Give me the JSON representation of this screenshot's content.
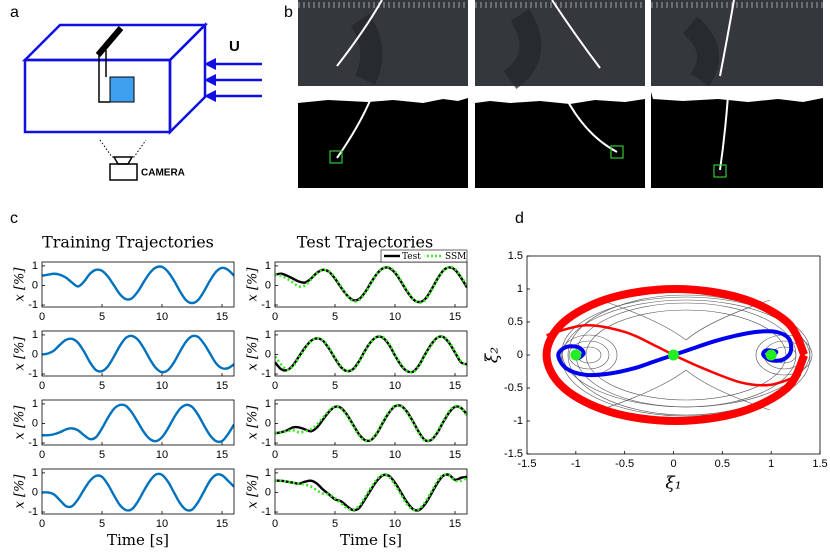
{
  "panel_labels": [
    "a",
    "b",
    "c",
    "d"
  ],
  "diagram": {
    "flow_label": "U",
    "camera_label": "CAMERA"
  },
  "column_titles": [
    "Training Trajectories",
    "Test Trajectories"
  ],
  "chart_data": [
    {
      "type": "line",
      "x": [
        0,
        0.5,
        1,
        1.5,
        2,
        2.5,
        3,
        3.5,
        4,
        4.5,
        5,
        5.5,
        6,
        6.5,
        7,
        7.5,
        8,
        8.5,
        9,
        9.5,
        10,
        10.5,
        11,
        11.5,
        12,
        12.5,
        13,
        13.5,
        14,
        14.5,
        15,
        15.5,
        16
      ],
      "series": [
        {
          "color": "#0072bd",
          "values": [
            0.5,
            0.55,
            0.6,
            0.55,
            0.4,
            0.15,
            -0.05,
            0.2,
            0.6,
            0.8,
            0.75,
            0.45,
            0,
            -0.45,
            -0.7,
            -0.65,
            -0.3,
            0.2,
            0.65,
            0.92,
            0.95,
            0.7,
            0.25,
            -0.3,
            -0.75,
            -0.9,
            -0.75,
            -0.3,
            0.25,
            0.7,
            0.9,
            0.8,
            0.5
          ]
        }
      ],
      "xlim": [
        0,
        16
      ],
      "ylim": [
        -1.1,
        1.2
      ],
      "xticks": [
        0,
        5,
        10,
        15
      ],
      "yticks": [
        -1,
        0,
        1
      ],
      "y_label": "x [%]"
    },
    {
      "type": "line",
      "x": [
        0,
        0.5,
        1,
        1.5,
        2,
        2.5,
        3,
        3.5,
        4,
        4.5,
        5,
        5.5,
        6,
        6.5,
        7,
        7.5,
        8,
        8.5,
        9,
        9.5,
        10,
        10.5,
        11,
        11.5,
        12,
        12.5,
        13,
        13.5,
        14,
        14.5,
        15,
        15.5,
        16
      ],
      "series": [
        {
          "name": "Test",
          "color": "#000000",
          "values": [
            0.55,
            0.6,
            0.5,
            0.35,
            0.2,
            0.15,
            0.35,
            0.65,
            0.8,
            0.7,
            0.35,
            -0.1,
            -0.5,
            -0.75,
            -0.7,
            -0.35,
            0.15,
            0.6,
            0.88,
            0.9,
            0.65,
            0.2,
            -0.3,
            -0.7,
            -0.85,
            -0.7,
            -0.25,
            0.3,
            0.75,
            0.92,
            0.8,
            0.4,
            -0.1
          ]
        },
        {
          "name": "SSM",
          "color": "#3ee62a",
          "line_style": "dotted",
          "values": [
            0.55,
            0.5,
            0.35,
            0.15,
            -0.05,
            0.0,
            0.3,
            0.62,
            0.78,
            0.72,
            0.4,
            -0.05,
            -0.5,
            -0.8,
            -0.75,
            -0.4,
            0.1,
            0.58,
            0.88,
            0.93,
            0.7,
            0.25,
            -0.25,
            -0.68,
            -0.88,
            -0.75,
            -0.3,
            0.25,
            0.72,
            0.93,
            0.85,
            0.45,
            0.0
          ]
        }
      ],
      "legend": "northeast",
      "xlim": [
        0,
        16
      ],
      "ylim": [
        -1.1,
        1.2
      ],
      "xticks": [
        0,
        5,
        10,
        15
      ],
      "yticks": [
        -1,
        0,
        1
      ],
      "y_label": "x [%]"
    },
    {
      "type": "line",
      "x": [
        0,
        0.5,
        1,
        1.5,
        2,
        2.5,
        3,
        3.5,
        4,
        4.5,
        5,
        5.5,
        6,
        6.5,
        7,
        7.5,
        8,
        8.5,
        9,
        9.5,
        10,
        10.5,
        11,
        11.5,
        12,
        12.5,
        13,
        13.5,
        14,
        14.5,
        15,
        15.5,
        16
      ],
      "series": [
        {
          "color": "#0072bd",
          "values": [
            0,
            0.05,
            0.2,
            0.5,
            0.75,
            0.8,
            0.6,
            0.15,
            -0.4,
            -0.8,
            -0.85,
            -0.6,
            -0.1,
            0.45,
            0.85,
            0.95,
            0.75,
            0.3,
            -0.25,
            -0.7,
            -0.9,
            -0.8,
            -0.4,
            0.15,
            0.65,
            0.93,
            0.9,
            0.55,
            0.05,
            -0.45,
            -0.7,
            -0.7,
            -0.5
          ]
        }
      ],
      "xlim": [
        0,
        16
      ],
      "ylim": [
        -1.1,
        1.2
      ],
      "xticks": [
        0,
        5,
        10,
        15
      ],
      "yticks": [
        -1,
        0,
        1
      ],
      "y_label": "x [%]"
    },
    {
      "type": "line",
      "x": [
        0,
        0.5,
        1,
        1.5,
        2,
        2.5,
        3,
        3.5,
        4,
        4.5,
        5,
        5.5,
        6,
        6.5,
        7,
        7.5,
        8,
        8.5,
        9,
        9.5,
        10,
        10.5,
        11,
        11.5,
        12,
        12.5,
        13,
        13.5,
        14,
        14.5,
        15,
        15.5,
        16
      ],
      "series": [
        {
          "color": "#000000",
          "values": [
            -0.4,
            -0.75,
            -0.8,
            -0.55,
            -0.1,
            0.35,
            0.7,
            0.82,
            0.7,
            0.3,
            -0.2,
            -0.65,
            -0.85,
            -0.75,
            -0.35,
            0.2,
            0.65,
            0.9,
            0.85,
            0.5,
            -0.05,
            -0.55,
            -0.85,
            -0.88,
            -0.55,
            0,
            0.5,
            0.85,
            0.9,
            0.6,
            0.1,
            -0.4,
            -0.5
          ]
        },
        {
          "color": "#3ee62a",
          "line_style": "dotted",
          "values": [
            -0.1,
            -0.5,
            -0.78,
            -0.6,
            -0.15,
            0.3,
            0.68,
            0.82,
            0.72,
            0.35,
            -0.15,
            -0.6,
            -0.85,
            -0.78,
            -0.4,
            0.15,
            0.62,
            0.9,
            0.88,
            0.55,
            0,
            -0.5,
            -0.83,
            -0.9,
            -0.6,
            -0.05,
            0.45,
            0.83,
            0.92,
            0.65,
            0.15,
            -0.35,
            -0.55
          ]
        }
      ],
      "xlim": [
        0,
        16
      ],
      "ylim": [
        -1.1,
        1.2
      ],
      "xticks": [
        0,
        5,
        10,
        15
      ],
      "yticks": [
        -1,
        0,
        1
      ],
      "y_label": "x [%]"
    },
    {
      "type": "line",
      "x": [
        0,
        0.5,
        1,
        1.5,
        2,
        2.5,
        3,
        3.5,
        4,
        4.5,
        5,
        5.5,
        6,
        6.5,
        7,
        7.5,
        8,
        8.5,
        9,
        9.5,
        10,
        10.5,
        11,
        11.5,
        12,
        12.5,
        13,
        13.5,
        14,
        14.5,
        15,
        15.5,
        16
      ],
      "series": [
        {
          "color": "#0072bd",
          "values": [
            -0.6,
            -0.6,
            -0.55,
            -0.45,
            -0.3,
            -0.25,
            -0.35,
            -0.6,
            -0.8,
            -0.7,
            -0.25,
            0.3,
            0.75,
            0.95,
            0.9,
            0.55,
            0.05,
            -0.45,
            -0.8,
            -0.9,
            -0.7,
            -0.25,
            0.3,
            0.75,
            0.95,
            0.85,
            0.45,
            -0.1,
            -0.6,
            -0.9,
            -0.9,
            -0.55,
            -0.05
          ]
        }
      ],
      "xlim": [
        0,
        16
      ],
      "ylim": [
        -1.1,
        1.2
      ],
      "xticks": [
        0,
        5,
        10,
        15
      ],
      "yticks": [
        -1,
        0,
        1
      ],
      "y_label": "x [%]"
    },
    {
      "type": "line",
      "x": [
        0,
        0.5,
        1,
        1.5,
        2,
        2.5,
        3,
        3.5,
        4,
        4.5,
        5,
        5.5,
        6,
        6.5,
        7,
        7.5,
        8,
        8.5,
        9,
        9.5,
        10,
        10.5,
        11,
        11.5,
        12,
        12.5,
        13,
        13.5,
        14,
        14.5,
        15,
        15.5,
        16
      ],
      "series": [
        {
          "color": "#000000",
          "values": [
            -0.5,
            -0.45,
            -0.35,
            -0.2,
            -0.2,
            -0.3,
            -0.4,
            -0.2,
            0.2,
            0.6,
            0.85,
            0.8,
            0.45,
            -0.05,
            -0.55,
            -0.85,
            -0.85,
            -0.5,
            0.05,
            0.55,
            0.88,
            0.9,
            0.6,
            0.1,
            -0.45,
            -0.85,
            -0.85,
            -0.5,
            0.05,
            0.55,
            0.85,
            0.8,
            0.45
          ]
        },
        {
          "color": "#3ee62a",
          "line_style": "dotted",
          "values": [
            -0.5,
            -0.45,
            -0.4,
            -0.35,
            -0.45,
            -0.4,
            -0.3,
            -0.05,
            0.3,
            0.65,
            0.85,
            0.75,
            0.4,
            -0.1,
            -0.6,
            -0.88,
            -0.82,
            -0.45,
            0.1,
            0.6,
            0.9,
            0.88,
            0.55,
            0.05,
            -0.5,
            -0.88,
            -0.82,
            -0.45,
            0.1,
            0.6,
            0.88,
            0.78,
            0.4
          ]
        }
      ],
      "xlim": [
        0,
        16
      ],
      "ylim": [
        -1.1,
        1.2
      ],
      "xticks": [
        0,
        5,
        10,
        15
      ],
      "yticks": [
        -1,
        0,
        1
      ],
      "y_label": "x [%]"
    },
    {
      "type": "line",
      "x": [
        0,
        0.5,
        1,
        1.5,
        2,
        2.5,
        3,
        3.5,
        4,
        4.5,
        5,
        5.5,
        6,
        6.5,
        7,
        7.5,
        8,
        8.5,
        9,
        9.5,
        10,
        10.5,
        11,
        11.5,
        12,
        12.5,
        13,
        13.5,
        14,
        14.5,
        15,
        15.5,
        16
      ],
      "series": [
        {
          "color": "#0072bd",
          "values": [
            0,
            0,
            -0.1,
            -0.4,
            -0.7,
            -0.7,
            -0.35,
            0.15,
            0.6,
            0.85,
            0.8,
            0.4,
            -0.15,
            -0.65,
            -0.9,
            -0.85,
            -0.45,
            0.1,
            0.6,
            0.92,
            0.9,
            0.55,
            0,
            -0.55,
            -0.88,
            -0.88,
            -0.5,
            0.05,
            0.6,
            0.9,
            0.88,
            0.6,
            0.3
          ]
        }
      ],
      "xlim": [
        0,
        16
      ],
      "ylim": [
        -1.1,
        1.2
      ],
      "xticks": [
        0,
        5,
        10,
        15
      ],
      "yticks": [
        -1,
        0,
        1
      ],
      "y_label": "x [%]",
      "x_label": "Time [s]"
    },
    {
      "type": "line",
      "x": [
        0,
        0.5,
        1,
        1.5,
        2,
        2.5,
        3,
        3.5,
        4,
        4.5,
        5,
        5.5,
        6,
        6.5,
        7,
        7.5,
        8,
        8.5,
        9,
        9.5,
        10,
        10.5,
        11,
        11.5,
        12,
        12.5,
        13,
        13.5,
        14,
        14.5,
        15,
        15.5,
        16
      ],
      "series": [
        {
          "color": "#000000",
          "values": [
            0.6,
            0.6,
            0.55,
            0.5,
            0.45,
            0.55,
            0.6,
            0.45,
            0.15,
            -0.1,
            -0.35,
            -0.45,
            -0.7,
            -0.9,
            -0.8,
            -0.35,
            0.15,
            0.6,
            0.88,
            0.85,
            0.5,
            0,
            -0.5,
            -0.85,
            -0.9,
            -0.6,
            -0.1,
            0.45,
            0.85,
            0.9,
            0.65,
            0.75,
            0.8
          ]
        },
        {
          "color": "#3ee62a",
          "line_style": "dotted",
          "values": [
            0.6,
            0.6,
            0.55,
            0.5,
            0.45,
            0.4,
            0.3,
            0.1,
            -0.05,
            -0.1,
            -0.3,
            -0.55,
            -0.8,
            -0.88,
            -0.7,
            -0.25,
            0.25,
            0.68,
            0.9,
            0.8,
            0.4,
            -0.1,
            -0.6,
            -0.88,
            -0.85,
            -0.5,
            0.0,
            0.55,
            0.88,
            0.88,
            0.6,
            0.6,
            0.75
          ]
        }
      ],
      "xlim": [
        0,
        16
      ],
      "ylim": [
        -1.1,
        1.2
      ],
      "xticks": [
        0,
        5,
        10,
        15
      ],
      "yticks": [
        -1,
        0,
        1
      ],
      "y_label": "x [%]",
      "x_label": "Time [s]"
    },
    {
      "type": "phase",
      "xlim": [
        -1.5,
        1.5
      ],
      "ylim": [
        -1.5,
        1.5
      ],
      "xticks": [
        -1.5,
        -1,
        -0.5,
        0,
        0.5,
        1,
        1.5
      ],
      "yticks": [
        -1.5,
        -1,
        -0.5,
        0,
        0.5,
        1,
        1.5
      ],
      "x_label": "ξ₁",
      "y_label": "ξ₂",
      "series": [
        {
          "color": "#ff0000",
          "line_width": 8,
          "x": [
            1.34,
            1.163,
            0.68,
            0.02,
            -0.64,
            -1.123,
            -1.3,
            -1.123,
            -0.64,
            0.02,
            0.68,
            1.163,
            1.34
          ],
          "y": [
            0,
            0.5,
            0.866,
            1.0,
            0.866,
            0.5,
            0,
            -0.5,
            -0.866,
            -1.0,
            -0.866,
            -0.5,
            0
          ]
        },
        {
          "color": "#ff0000",
          "line_width": 2.5,
          "x": [
            -1.3,
            -0.9,
            -0.5,
            -0.2,
            0
          ],
          "y": [
            0.3,
            0.45,
            0.35,
            0.15,
            0
          ]
        },
        {
          "color": "#ff0000",
          "line_width": 2.5,
          "x": [
            0,
            0.3,
            0.7,
            1.0,
            1.3
          ],
          "y": [
            0,
            -0.2,
            -0.42,
            -0.45,
            -0.3
          ]
        },
        {
          "color": "#0000ee",
          "line_width": 4,
          "x": [
            0,
            0.2,
            0.4,
            0.6,
            0.85,
            1.05,
            1.18,
            1.2,
            1.12,
            1.0,
            0.92,
            0.95,
            1.05,
            1.02
          ],
          "y": [
            0,
            0.1,
            0.2,
            0.28,
            0.35,
            0.35,
            0.25,
            0.05,
            -0.07,
            -0.08,
            0,
            0.07,
            0.05,
            0
          ]
        },
        {
          "color": "#0000ee",
          "line_width": 4,
          "x": [
            0,
            -0.2,
            -0.4,
            -0.65,
            -0.9,
            -1.1,
            -1.18,
            -1.1,
            -0.98,
            -0.92,
            -0.98,
            -1.02
          ],
          "y": [
            0,
            -0.1,
            -0.2,
            -0.28,
            -0.3,
            -0.2,
            0,
            0.12,
            0.12,
            0.03,
            -0.05,
            0
          ]
        }
      ],
      "points": {
        "color": "#22ee22",
        "x": [
          -1,
          0,
          1
        ],
        "y": [
          0,
          0,
          0
        ]
      }
    }
  ]
}
